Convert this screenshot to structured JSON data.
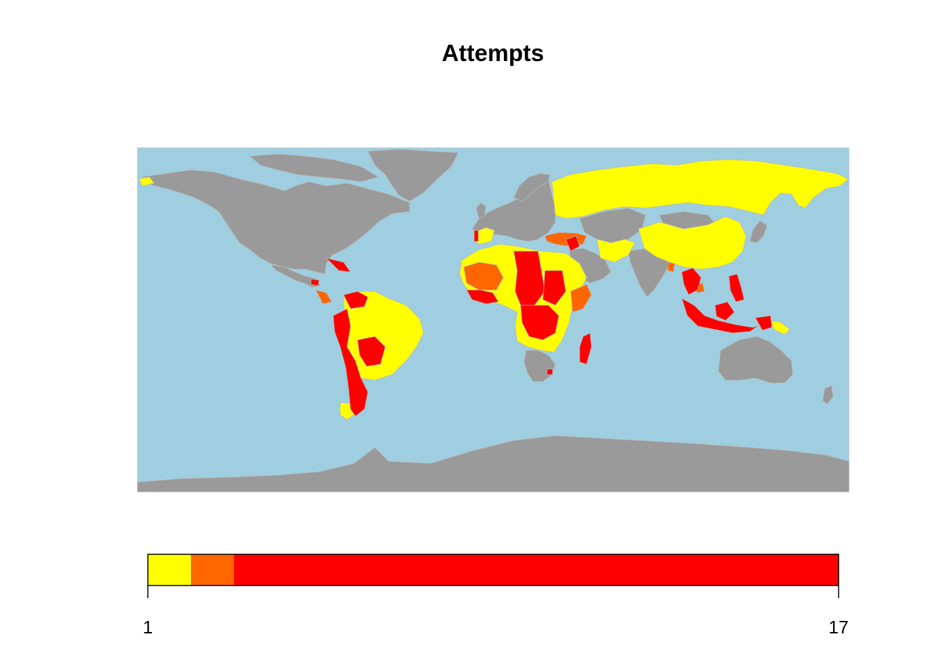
{
  "title": "Attempts",
  "colors": {
    "ocean": "#9ecee0",
    "no_data": "#9a9a9a",
    "low": "#ffff00",
    "mid": "#ff6600",
    "high": "#ff0000",
    "border": "#b8b8b8"
  },
  "legend": {
    "min_label": "1",
    "max_label": "17",
    "range": [
      1,
      17
    ],
    "bins": [
      {
        "from": 1,
        "to": 2,
        "color": "#ffff00"
      },
      {
        "from": 2,
        "to": 3,
        "color": "#ff6600"
      },
      {
        "from": 3,
        "to": 17,
        "color": "#ff0000"
      }
    ]
  }
}
